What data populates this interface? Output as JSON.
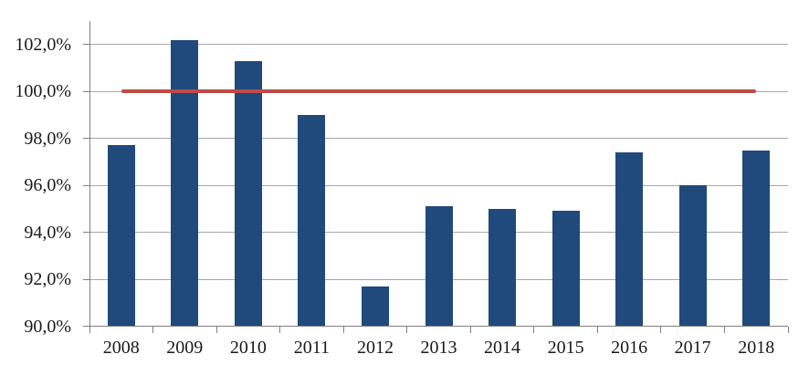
{
  "chart_data": {
    "type": "bar",
    "title": "",
    "xlabel": "",
    "ylabel": "",
    "categories": [
      "2008",
      "2009",
      "2010",
      "2011",
      "2012",
      "2013",
      "2014",
      "2015",
      "2016",
      "2017",
      "2018"
    ],
    "series": [
      {
        "name": "percentage-bars",
        "type": "bar",
        "color": "#1f4a7b",
        "values": [
          97.7,
          102.2,
          101.3,
          99.0,
          91.7,
          95.1,
          95.0,
          94.9,
          97.4,
          96.0,
          97.5
        ]
      },
      {
        "name": "reference-line-100",
        "type": "line",
        "color": "#be4b48",
        "values": [
          100.0,
          100.0,
          100.0,
          100.0,
          100.0,
          100.0,
          100.0,
          100.0,
          100.0,
          100.0,
          100.0
        ]
      }
    ],
    "ylim": [
      90,
      103
    ],
    "yticks": [
      90,
      92,
      94,
      96,
      98,
      100,
      102
    ],
    "ytick_labels": [
      "90,0%",
      "92,0%",
      "94,0%",
      "96,0%",
      "98,0%",
      "100,0%",
      "102,0%"
    ],
    "decimal_separator": ",",
    "grid": true,
    "legend": false,
    "colors": {
      "bar": "#1f4a7b",
      "reference_line": "#be4b48",
      "gridline": "#a6a6a6",
      "axis": "#808080",
      "text": "#1a1a1a",
      "background": "#ffffff"
    }
  }
}
